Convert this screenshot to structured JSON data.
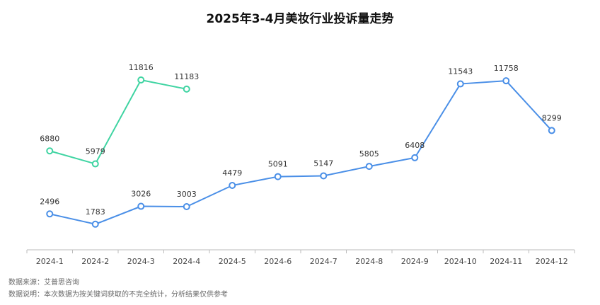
{
  "chart_data": {
    "type": "line",
    "title": "2025年3-4月美妆行业投诉量走势",
    "categories": [
      "2024-1",
      "2024-2",
      "2024-3",
      "2024-4",
      "2024-5",
      "2024-6",
      "2024-7",
      "2024-8",
      "2024-9",
      "2024-10",
      "2024-11",
      "2024-12"
    ],
    "series": [
      {
        "color": "#4a8fe7",
        "values": [
          2496,
          1783,
          3026,
          3003,
          4479,
          5091,
          5147,
          5805,
          6408,
          11543,
          11758,
          8299
        ]
      },
      {
        "color": "#3fd4a2",
        "values": [
          6880,
          5979,
          11816,
          11183,
          null,
          null,
          null,
          null,
          null,
          null,
          null,
          null
        ]
      }
    ],
    "notes": [
      "数据来源：艾普思咨询",
      "数据说明：本次数据为按关键词获取的不完全统计，分析结果仅供参考"
    ]
  }
}
